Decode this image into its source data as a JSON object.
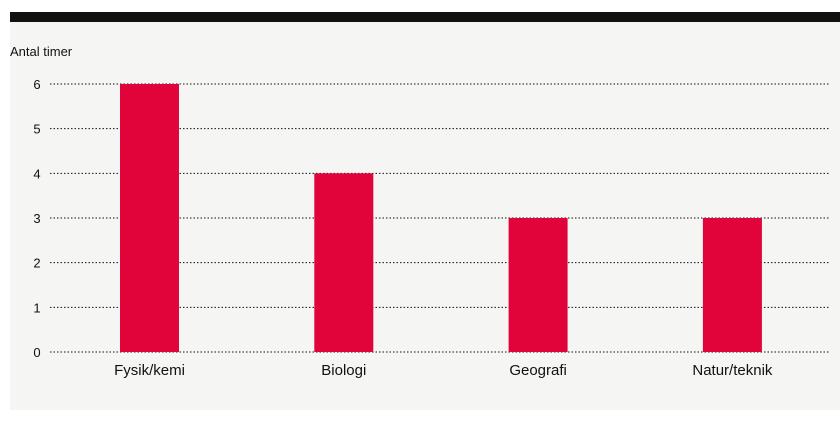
{
  "colors": {
    "bar": "#e0043b",
    "top_bar": "#111111",
    "panel_bg": "#f5f5f4",
    "grid": "#111111",
    "text": "#111111"
  },
  "chart_data": {
    "type": "bar",
    "ylabel": "Antal timer",
    "xlabel": "",
    "categories": [
      "Fysik/kemi",
      "Biologi",
      "Geografi",
      "Natur/teknik"
    ],
    "values": [
      6,
      4,
      3,
      3
    ],
    "ylim": [
      0,
      6
    ],
    "yticks": [
      0,
      1,
      2,
      3,
      4,
      5,
      6
    ],
    "grid": true,
    "grid_style": "dotted",
    "legend": "none"
  }
}
